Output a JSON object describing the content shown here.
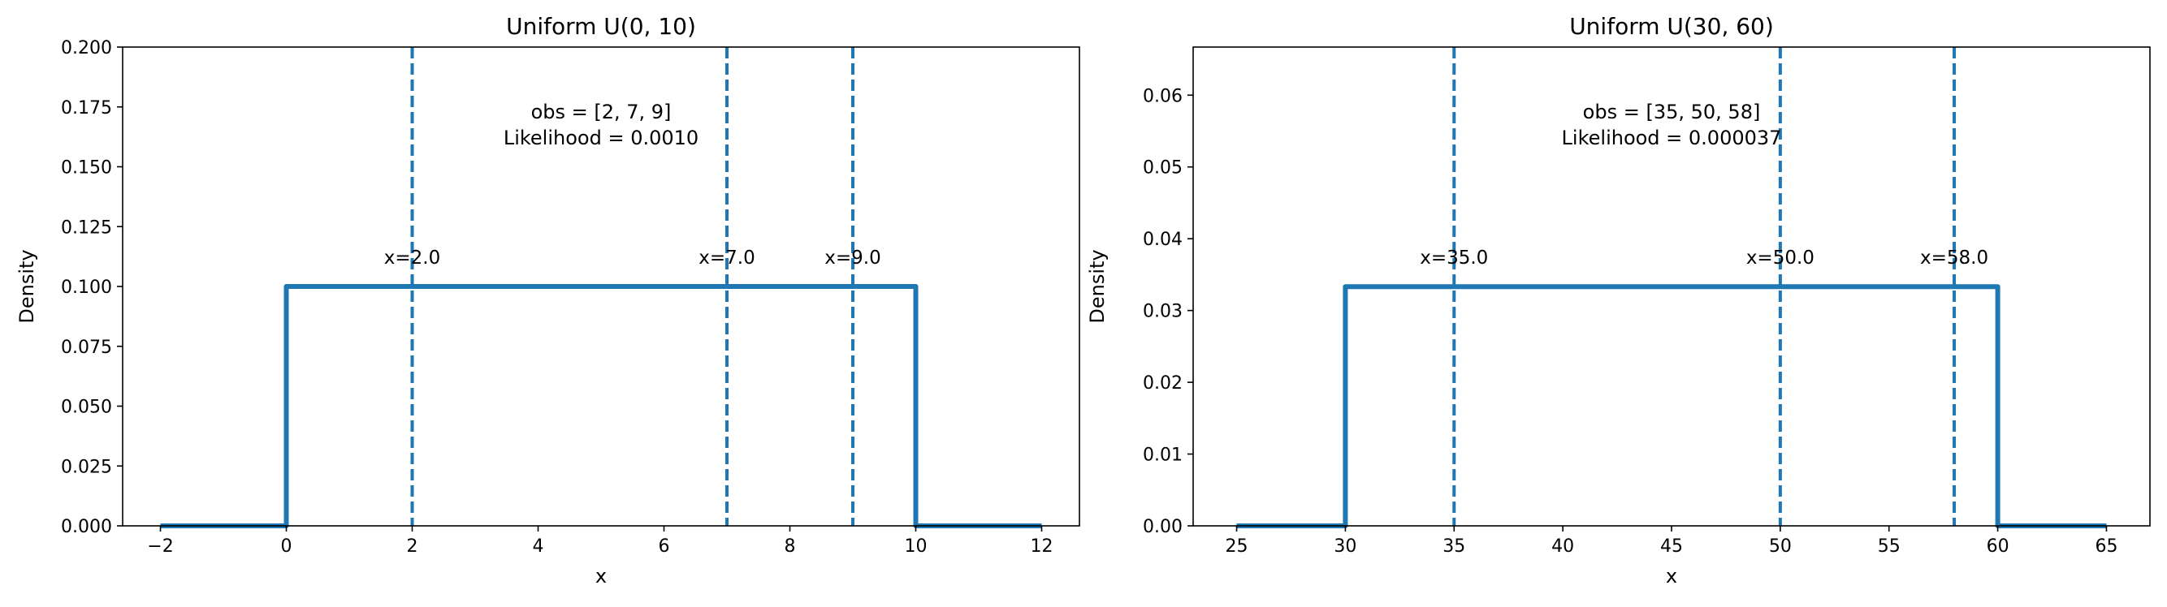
{
  "colors": {
    "line": "#1f77b4",
    "axes": "#000000",
    "background": "#ffffff"
  },
  "chart_data": [
    {
      "type": "line",
      "title": "Uniform U(0, 10)",
      "xlabel": "x",
      "ylabel": "Density",
      "xlim": [
        -2.6,
        12.6
      ],
      "ylim": [
        0,
        0.2
      ],
      "xticks": [
        -2,
        0,
        2,
        4,
        6,
        8,
        10,
        12
      ],
      "xtick_labels": [
        "−2",
        "0",
        "2",
        "4",
        "6",
        "8",
        "10",
        "12"
      ],
      "yticks": [
        0,
        0.025,
        0.05,
        0.075,
        0.1,
        0.125,
        0.15,
        0.175,
        0.2
      ],
      "ytick_labels": [
        "0.000",
        "0.025",
        "0.050",
        "0.075",
        "0.100",
        "0.125",
        "0.150",
        "0.175",
        "0.200"
      ],
      "series": [
        {
          "x": [
            -2,
            0,
            0,
            10,
            10,
            12
          ],
          "y": [
            0,
            0,
            0.1,
            0.1,
            0,
            0
          ]
        }
      ],
      "observations": [
        2,
        7,
        9
      ],
      "observation_labels": [
        "x=2.0",
        "x=7.0",
        "x=9.0"
      ],
      "annotation_lines": [
        "obs = [2, 7, 9]",
        "Likelihood = 0.0010"
      ],
      "annotation_position": "top-center",
      "grid": false
    },
    {
      "type": "line",
      "title": "Uniform U(30, 60)",
      "xlabel": "x",
      "ylabel": "Density",
      "xlim": [
        23,
        67
      ],
      "ylim": [
        0,
        0.0667
      ],
      "xticks": [
        25,
        30,
        35,
        40,
        45,
        50,
        55,
        60,
        65
      ],
      "xtick_labels": [
        "25",
        "30",
        "35",
        "40",
        "45",
        "50",
        "55",
        "60",
        "65"
      ],
      "yticks": [
        0,
        0.01,
        0.02,
        0.03,
        0.04,
        0.05,
        0.06
      ],
      "ytick_labels": [
        "0.00",
        "0.01",
        "0.02",
        "0.03",
        "0.04",
        "0.05",
        "0.06"
      ],
      "series": [
        {
          "x": [
            25,
            30,
            30,
            60,
            60,
            65
          ],
          "y": [
            0,
            0,
            0.03333,
            0.03333,
            0,
            0
          ]
        }
      ],
      "observations": [
        35,
        50,
        58
      ],
      "observation_labels": [
        "x=35.0",
        "x=50.0",
        "x=58.0"
      ],
      "annotation_lines": [
        "obs = [35, 50, 58]",
        "Likelihood = 0.000037"
      ],
      "annotation_position": "top-center",
      "grid": false
    }
  ]
}
